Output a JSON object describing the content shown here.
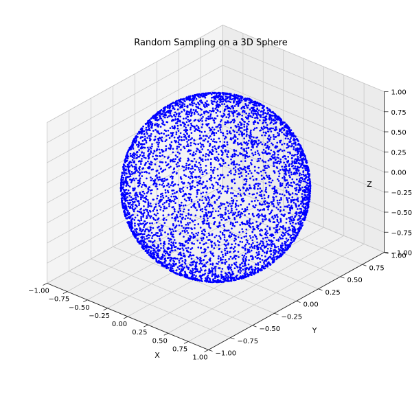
{
  "chart_data": {
    "type": "scatter",
    "projection": "3d",
    "title": "Random Sampling on a 3D Sphere",
    "xlabel": "X",
    "ylabel": "Y",
    "zlabel": "Z",
    "xlim": [
      -1.0,
      1.0
    ],
    "ylim": [
      -1.0,
      1.0
    ],
    "zlim": [
      -1.0,
      1.0
    ],
    "x_ticks": [
      "−1.00",
      "−0.75",
      "−0.50",
      "−0.25",
      "0.00",
      "0.25",
      "0.50",
      "0.75",
      "1.00"
    ],
    "y_ticks": [
      "−1.00",
      "−0.75",
      "−0.50",
      "−0.25",
      "0.00",
      "0.25",
      "0.50",
      "0.75",
      "1.00"
    ],
    "z_ticks": [
      "−1.00",
      "−0.75",
      "−0.50",
      "−0.25",
      "0.00",
      "0.25",
      "0.50",
      "0.75",
      "1.00"
    ],
    "grid": true,
    "series": [
      {
        "distribution": "uniform on unit sphere",
        "center": [
          0,
          0,
          0
        ],
        "radius": 1.0,
        "color": "#0000ff",
        "marker": "circle"
      }
    ]
  }
}
